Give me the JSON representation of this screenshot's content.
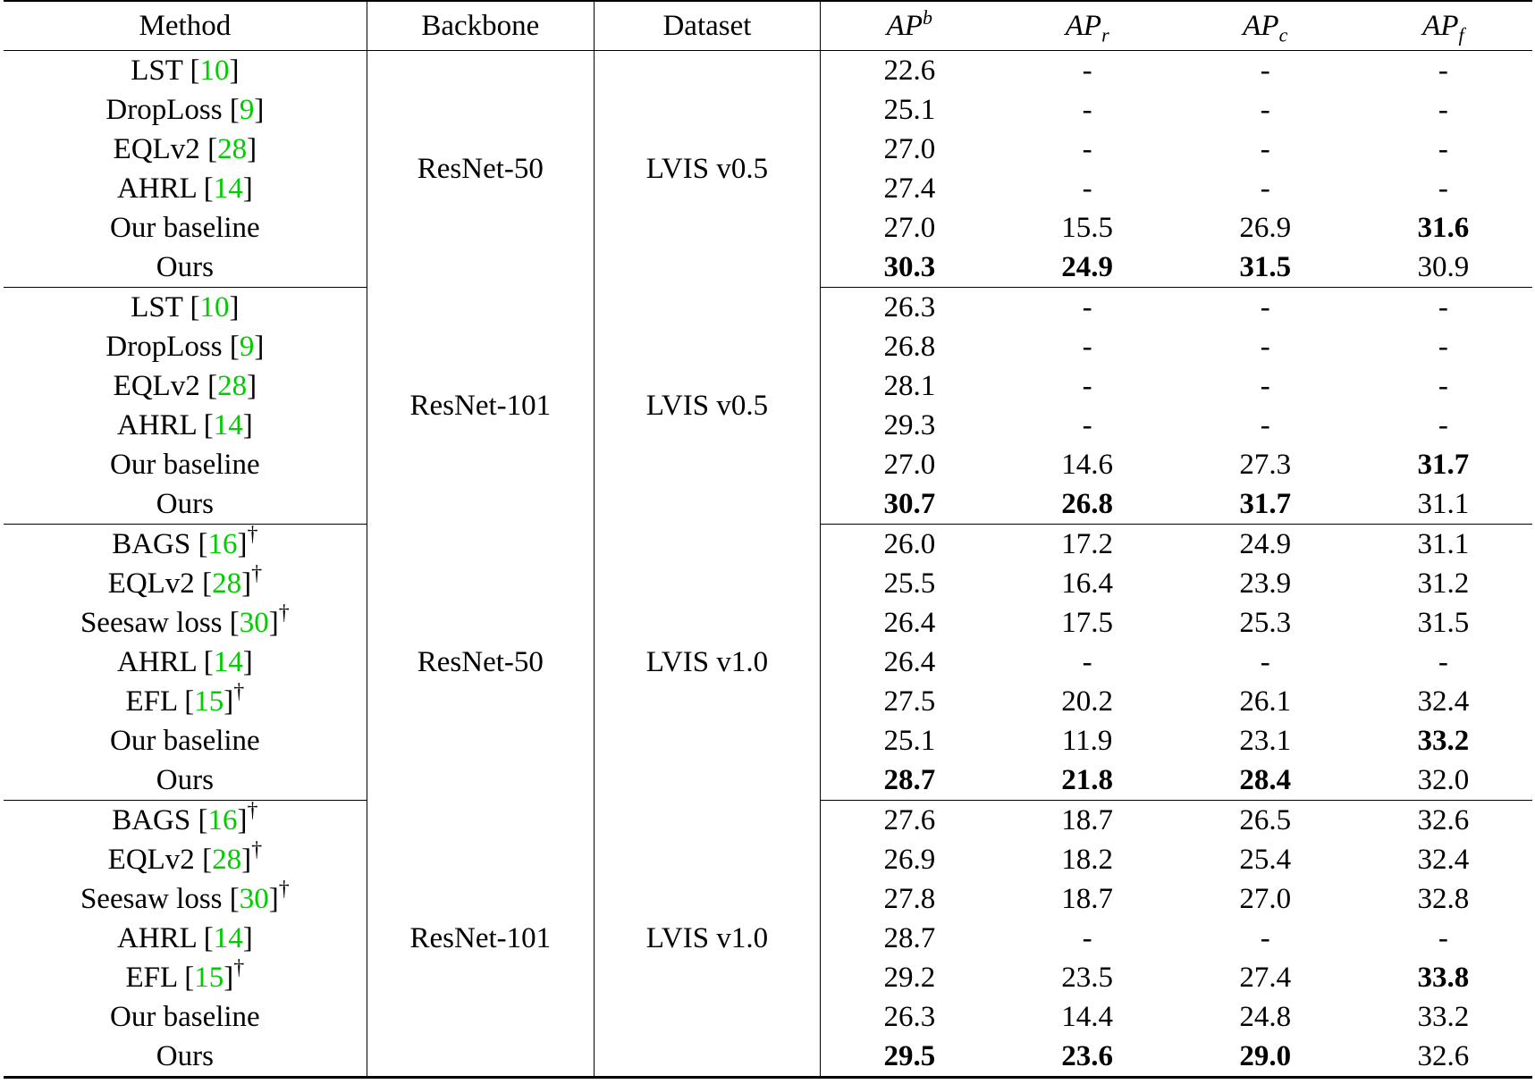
{
  "header": {
    "method": "Method",
    "backbone": "Backbone",
    "dataset": "Dataset",
    "metrics": [
      {
        "base": "AP",
        "script": "b",
        "type": "sup"
      },
      {
        "base": "AP",
        "script": "r",
        "type": "sub"
      },
      {
        "base": "AP",
        "script": "c",
        "type": "sub"
      },
      {
        "base": "AP",
        "script": "f",
        "type": "sub"
      }
    ]
  },
  "groups": [
    {
      "backbone": "ResNet-50",
      "dataset": "LVIS v0.5",
      "rows": [
        {
          "name": "LST",
          "cite": "10",
          "dagger": false,
          "apb": "22.6",
          "apr": "-",
          "apc": "-",
          "apf": "-",
          "bold": []
        },
        {
          "name": "DropLoss",
          "cite": "9",
          "dagger": false,
          "apb": "25.1",
          "apr": "-",
          "apc": "-",
          "apf": "-",
          "bold": []
        },
        {
          "name": "EQLv2",
          "cite": "28",
          "dagger": false,
          "apb": "27.0",
          "apr": "-",
          "apc": "-",
          "apf": "-",
          "bold": []
        },
        {
          "name": "AHRL",
          "cite": "14",
          "dagger": false,
          "apb": "27.4",
          "apr": "-",
          "apc": "-",
          "apf": "-",
          "bold": []
        },
        {
          "name": "Our baseline",
          "cite": "",
          "dagger": false,
          "apb": "27.0",
          "apr": "15.5",
          "apc": "26.9",
          "apf": "31.6",
          "bold": [
            "apf"
          ]
        },
        {
          "name": "Ours",
          "cite": "",
          "dagger": false,
          "apb": "30.3",
          "apr": "24.9",
          "apc": "31.5",
          "apf": "30.9",
          "bold": [
            "apb",
            "apr",
            "apc"
          ]
        }
      ]
    },
    {
      "backbone": "ResNet-101",
      "dataset": "LVIS v0.5",
      "rows": [
        {
          "name": "LST",
          "cite": "10",
          "dagger": false,
          "apb": "26.3",
          "apr": "-",
          "apc": "-",
          "apf": "-",
          "bold": []
        },
        {
          "name": "DropLoss",
          "cite": "9",
          "dagger": false,
          "apb": "26.8",
          "apr": "-",
          "apc": "-",
          "apf": "-",
          "bold": []
        },
        {
          "name": "EQLv2",
          "cite": "28",
          "dagger": false,
          "apb": "28.1",
          "apr": "-",
          "apc": "-",
          "apf": "-",
          "bold": []
        },
        {
          "name": "AHRL",
          "cite": "14",
          "dagger": false,
          "apb": "29.3",
          "apr": "-",
          "apc": "-",
          "apf": "-",
          "bold": []
        },
        {
          "name": "Our baseline",
          "cite": "",
          "dagger": false,
          "apb": "27.0",
          "apr": "14.6",
          "apc": "27.3",
          "apf": "31.7",
          "bold": [
            "apf"
          ]
        },
        {
          "name": "Ours",
          "cite": "",
          "dagger": false,
          "apb": "30.7",
          "apr": "26.8",
          "apc": "31.7",
          "apf": "31.1",
          "bold": [
            "apb",
            "apr",
            "apc"
          ]
        }
      ]
    },
    {
      "backbone": "ResNet-50",
      "dataset": "LVIS v1.0",
      "rows": [
        {
          "name": "BAGS",
          "cite": "16",
          "dagger": true,
          "apb": "26.0",
          "apr": "17.2",
          "apc": "24.9",
          "apf": "31.1",
          "bold": []
        },
        {
          "name": "EQLv2",
          "cite": "28",
          "dagger": true,
          "apb": "25.5",
          "apr": "16.4",
          "apc": "23.9",
          "apf": "31.2",
          "bold": []
        },
        {
          "name": "Seesaw loss",
          "cite": "30",
          "dagger": true,
          "apb": "26.4",
          "apr": "17.5",
          "apc": "25.3",
          "apf": "31.5",
          "bold": []
        },
        {
          "name": "AHRL",
          "cite": "14",
          "dagger": false,
          "apb": "26.4",
          "apr": "-",
          "apc": "-",
          "apf": "-",
          "bold": []
        },
        {
          "name": "EFL",
          "cite": "15",
          "dagger": true,
          "apb": "27.5",
          "apr": "20.2",
          "apc": "26.1",
          "apf": "32.4",
          "bold": []
        },
        {
          "name": "Our baseline",
          "cite": "",
          "dagger": false,
          "apb": "25.1",
          "apr": "11.9",
          "apc": "23.1",
          "apf": "33.2",
          "bold": [
            "apf"
          ]
        },
        {
          "name": "Ours",
          "cite": "",
          "dagger": false,
          "apb": "28.7",
          "apr": "21.8",
          "apc": "28.4",
          "apf": "32.0",
          "bold": [
            "apb",
            "apr",
            "apc"
          ]
        }
      ]
    },
    {
      "backbone": "ResNet-101",
      "dataset": "LVIS v1.0",
      "rows": [
        {
          "name": "BAGS",
          "cite": "16",
          "dagger": true,
          "apb": "27.6",
          "apr": "18.7",
          "apc": "26.5",
          "apf": "32.6",
          "bold": []
        },
        {
          "name": "EQLv2",
          "cite": "28",
          "dagger": true,
          "apb": "26.9",
          "apr": "18.2",
          "apc": "25.4",
          "apf": "32.4",
          "bold": []
        },
        {
          "name": "Seesaw loss",
          "cite": "30",
          "dagger": true,
          "apb": "27.8",
          "apr": "18.7",
          "apc": "27.0",
          "apf": "32.8",
          "bold": []
        },
        {
          "name": "AHRL",
          "cite": "14",
          "dagger": false,
          "apb": "28.7",
          "apr": "-",
          "apc": "-",
          "apf": "-",
          "bold": []
        },
        {
          "name": "EFL",
          "cite": "15",
          "dagger": true,
          "apb": "29.2",
          "apr": "23.5",
          "apc": "27.4",
          "apf": "33.8",
          "bold": [
            "apf"
          ]
        },
        {
          "name": "Our baseline",
          "cite": "",
          "dagger": false,
          "apb": "26.3",
          "apr": "14.4",
          "apc": "24.8",
          "apf": "33.2",
          "bold": []
        },
        {
          "name": "Ours",
          "cite": "",
          "dagger": false,
          "apb": "29.5",
          "apr": "23.6",
          "apc": "29.0",
          "apf": "32.6",
          "bold": [
            "apb",
            "apr",
            "apc"
          ]
        }
      ]
    }
  ],
  "symbols": {
    "dagger": "†",
    "lbracket": "[",
    "rbracket": "]"
  }
}
